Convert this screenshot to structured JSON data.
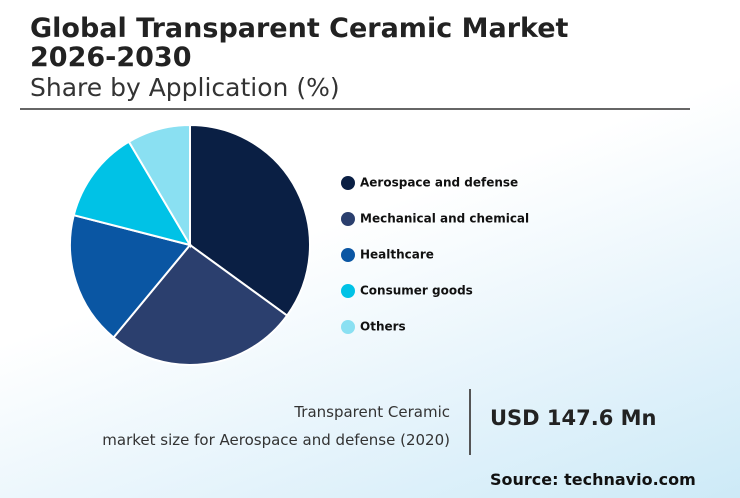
{
  "chart_data": {
    "type": "pie",
    "title": "Global Transparent Ceramic Market 2026-2030",
    "subtitle": "Share by Application (%)",
    "categories": [
      "Aerospace and defense",
      "Mechanical and chemical",
      "Healthcare",
      "Consumer goods",
      "Others"
    ],
    "values": [
      35,
      26,
      18,
      12.5,
      8.5
    ],
    "colors": [
      "#0a1f44",
      "#2b3f6e",
      "#0a56a3",
      "#00c2e6",
      "#8ae0f2"
    ],
    "caption": [
      "Transparent Ceramic",
      "market size for Aerospace and defense (2020)"
    ],
    "highlight": "USD 147.6 Mn",
    "source": "Source: technavio.com"
  }
}
